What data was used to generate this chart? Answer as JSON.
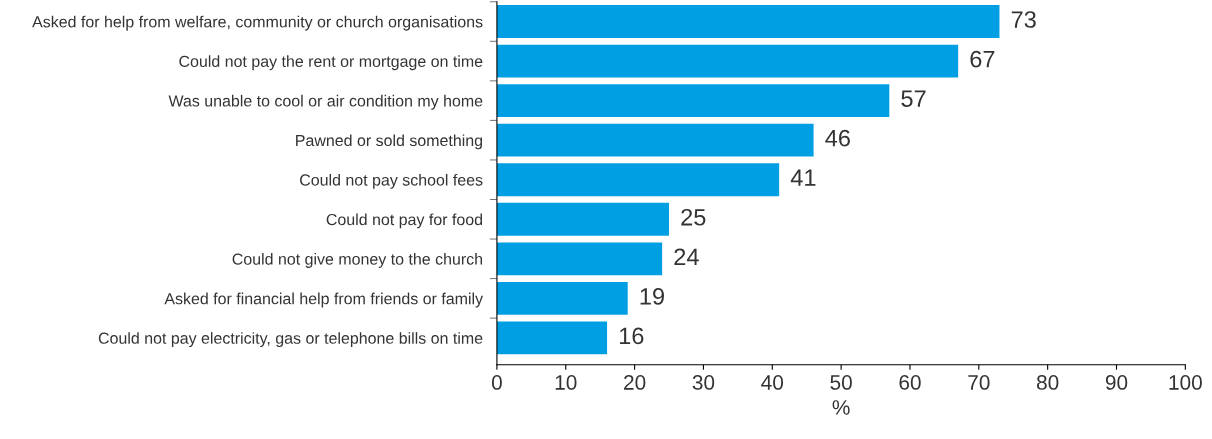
{
  "chart_data": {
    "type": "bar",
    "orientation": "horizontal",
    "xlabel": "%",
    "categories": [
      "Asked for help from welfare, community or church organisations",
      "Could not pay the rent or mortgage on time",
      "Was unable to cool or air condition my home",
      "Pawned or sold something",
      "Could not pay school fees",
      "Could not pay for food",
      "Could not give money to the church",
      "Asked for financial help from friends or family",
      "Could not pay electricity, gas or telephone bills on time"
    ],
    "values": [
      73,
      67,
      57,
      46,
      41,
      25,
      24,
      19,
      16
    ],
    "color": "#009fe3",
    "xlim": [
      0,
      100
    ],
    "xticks": [
      0,
      10,
      20,
      30,
      40,
      50,
      60,
      70,
      80,
      90,
      100
    ],
    "data_labels": true,
    "grid": false,
    "legend": false
  }
}
